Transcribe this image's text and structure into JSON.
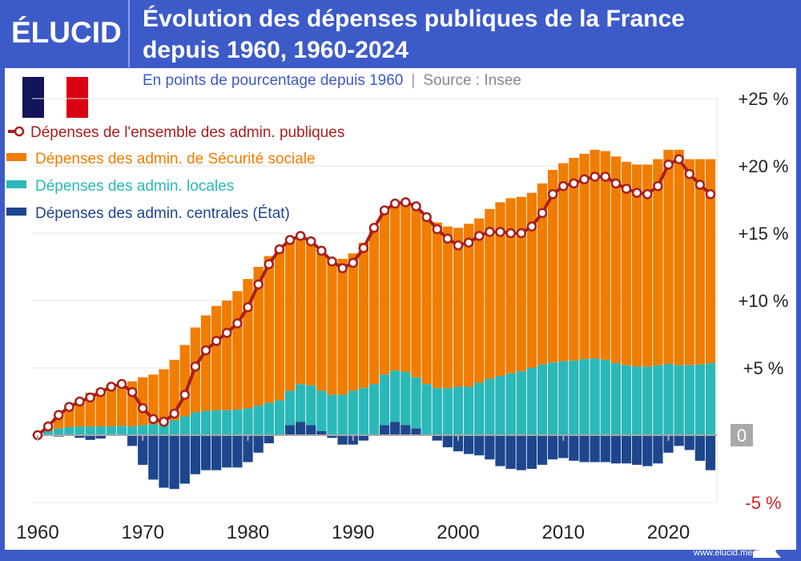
{
  "header": {
    "logo": "ÉLUCID",
    "title_line1": "Évolution des dépenses publiques de la France",
    "title_line2": "depuis 1960, 1960-2024",
    "subtitle": "En points de pourcentage depuis 1960",
    "separator": "|",
    "source": "Source : Insee"
  },
  "footer": {
    "url": "www.elucid.media"
  },
  "colors": {
    "frame": "#3d5bc8",
    "total": "#a8201c",
    "social": "#f07d00",
    "local": "#2bb8b8",
    "central": "#1d468d",
    "negative_label": "#d82020",
    "flag_blue": "#13145a",
    "flag_red": "#d80012"
  },
  "chart_data": {
    "type": "bar",
    "stacked": true,
    "subtitle": "En points de pourcentage depuis 1960",
    "ylim": [
      -5,
      25
    ],
    "yticks": [
      {
        "value": 25,
        "label": "+25 %"
      },
      {
        "value": 20,
        "label": "+20 %"
      },
      {
        "value": 15,
        "label": "+15 %"
      },
      {
        "value": 10,
        "label": "+10 %"
      },
      {
        "value": 5,
        "label": "+5 %"
      },
      {
        "value": 0,
        "label": "0"
      },
      {
        "value": -5,
        "label": "-5 %"
      }
    ],
    "xticks": [
      1960,
      1970,
      1980,
      1990,
      2000,
      2010,
      2020
    ],
    "grid": true,
    "legend_position": "top-left",
    "x": [
      1960,
      1961,
      1962,
      1963,
      1964,
      1965,
      1966,
      1967,
      1968,
      1969,
      1970,
      1971,
      1972,
      1973,
      1974,
      1975,
      1976,
      1977,
      1978,
      1979,
      1980,
      1981,
      1982,
      1983,
      1984,
      1985,
      1986,
      1987,
      1988,
      1989,
      1990,
      1991,
      1992,
      1993,
      1994,
      1995,
      1996,
      1997,
      1998,
      1999,
      2000,
      2001,
      2002,
      2003,
      2004,
      2005,
      2006,
      2007,
      2008,
      2009,
      2010,
      2011,
      2012,
      2013,
      2014,
      2015,
      2016,
      2017,
      2018,
      2019,
      2020,
      2021,
      2022,
      2023,
      2024
    ],
    "series": [
      {
        "name": "Dépenses de l'ensemble des admin. publiques",
        "type": "line",
        "values": [
          0,
          0.65,
          1.5,
          2.1,
          2.5,
          2.8,
          3.2,
          3.6,
          3.8,
          3.2,
          2.0,
          1.2,
          1.0,
          1.6,
          3.0,
          5.1,
          6.3,
          7.0,
          7.6,
          8.3,
          9.5,
          11.2,
          12.7,
          13.8,
          14.5,
          14.8,
          14.4,
          13.7,
          12.9,
          12.4,
          12.8,
          13.9,
          15.4,
          16.7,
          17.2,
          17.3,
          17.0,
          16.2,
          15.3,
          14.6,
          14.1,
          14.3,
          14.8,
          15.1,
          15.1,
          15.0,
          15.0,
          15.5,
          16.5,
          17.9,
          18.5,
          18.7,
          19.0,
          19.2,
          19.2,
          18.7,
          18.3,
          18.0,
          17.9,
          18.5,
          20.1,
          20.5,
          19.4,
          18.6,
          17.9
        ]
      },
      {
        "name": "Dépenses des admin. de Sécurité sociale",
        "type": "bar",
        "values": [
          0,
          0.35,
          1.1,
          1.5,
          2.05,
          2.5,
          2.8,
          2.95,
          3.1,
          3.35,
          3.55,
          3.7,
          3.9,
          4.5,
          5.3,
          6.3,
          7.1,
          7.75,
          8.15,
          8.8,
          9.6,
          10.3,
          10.9,
          11.3,
          11.1,
          11.0,
          10.5,
          10.2,
          10.1,
          10.1,
          10.2,
          10.8,
          11.7,
          12.2,
          12.4,
          12.5,
          12.5,
          12.3,
          12.3,
          12.0,
          11.8,
          12.1,
          12.2,
          12.6,
          12.9,
          13.0,
          12.95,
          13.0,
          13.45,
          14.3,
          14.7,
          15.05,
          15.25,
          15.5,
          15.5,
          15.35,
          15.1,
          15.0,
          15.0,
          15.3,
          15.9,
          16.0,
          15.3,
          15.25,
          15.15
        ]
      },
      {
        "name": "Dépenses des admin. locales",
        "type": "bar",
        "values": [
          0,
          0.3,
          0.5,
          0.6,
          0.65,
          0.65,
          0.65,
          0.65,
          0.7,
          0.65,
          0.75,
          0.8,
          1.0,
          1.1,
          1.4,
          1.7,
          1.8,
          1.85,
          1.85,
          1.9,
          2.0,
          2.2,
          2.4,
          2.6,
          2.55,
          2.8,
          2.95,
          3.0,
          3.0,
          3.0,
          3.3,
          3.5,
          3.8,
          3.75,
          3.8,
          3.95,
          3.8,
          3.8,
          3.5,
          3.5,
          3.6,
          3.6,
          3.9,
          4.2,
          4.4,
          4.6,
          4.75,
          5.0,
          5.25,
          5.4,
          5.5,
          5.55,
          5.65,
          5.7,
          5.6,
          5.35,
          5.2,
          5.1,
          5.1,
          5.2,
          5.3,
          5.2,
          5.2,
          5.25,
          5.35
        ]
      },
      {
        "name": "Dépenses des admin. centrales (État)",
        "type": "bar",
        "values": [
          0,
          0,
          -0.1,
          0,
          -0.2,
          -0.35,
          -0.25,
          0,
          0,
          -0.8,
          -2.2,
          -3.3,
          -3.9,
          -4.0,
          -3.6,
          -2.9,
          -2.6,
          -2.6,
          -2.4,
          -2.4,
          -2.0,
          -1.3,
          -0.6,
          0,
          0.75,
          1.0,
          0.75,
          0.3,
          -0.2,
          -0.7,
          -0.7,
          -0.4,
          0,
          0.75,
          1.0,
          0.75,
          0.5,
          0,
          -0.4,
          -0.9,
          -1.2,
          -1.4,
          -1.5,
          -1.8,
          -2.3,
          -2.5,
          -2.6,
          -2.5,
          -2.2,
          -1.8,
          -1.7,
          -1.9,
          -2.0,
          -2.0,
          -2.0,
          -2.1,
          -2.1,
          -2.2,
          -2.3,
          -2.1,
          -1.3,
          -0.8,
          -1.1,
          -1.9,
          -2.6
        ]
      }
    ]
  }
}
